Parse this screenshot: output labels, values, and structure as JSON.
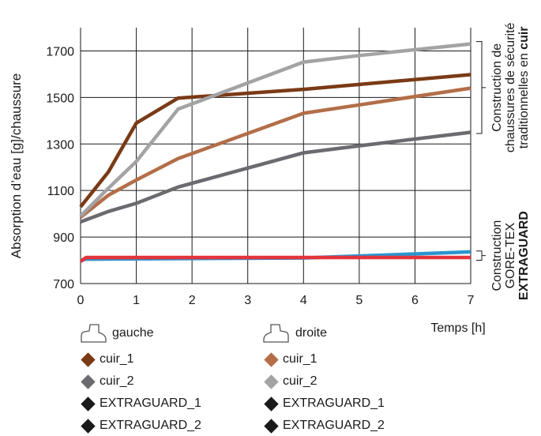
{
  "chart_data": {
    "type": "line",
    "ylabel": "Absorption d’eau [g]/chaussure",
    "xlabel": "Temps [h]",
    "xlim": [
      0,
      7
    ],
    "ylim": [
      700,
      1800
    ],
    "xticks": [
      "0",
      "1",
      "2",
      "3",
      "4",
      "5",
      "6",
      "7"
    ],
    "yticks": [
      "700",
      "900",
      "1100",
      "1300",
      "1500",
      "1700"
    ],
    "grid": true,
    "series": [
      {
        "name": "cuir_1",
        "side": "gauche",
        "color": "#7a3a16",
        "points": [
          [
            0,
            1030
          ],
          [
            0.1,
            1060
          ],
          [
            0.5,
            1180
          ],
          [
            1,
            1390
          ],
          [
            1.75,
            1497
          ],
          [
            4,
            1535
          ],
          [
            7,
            1598
          ]
        ]
      },
      {
        "name": "cuir_2",
        "side": "gauche",
        "color": "#6b6b6f",
        "points": [
          [
            0,
            965
          ],
          [
            0.5,
            1010
          ],
          [
            1,
            1045
          ],
          [
            1.75,
            1115
          ],
          [
            4,
            1262
          ],
          [
            5,
            1292
          ],
          [
            7,
            1350
          ]
        ]
      },
      {
        "name": "cuir_1",
        "side": "droite",
        "color": "#b36e49",
        "points": [
          [
            0,
            985
          ],
          [
            0.5,
            1080
          ],
          [
            1,
            1145
          ],
          [
            1.75,
            1237
          ],
          [
            4,
            1432
          ],
          [
            5,
            1468
          ],
          [
            7,
            1540
          ]
        ]
      },
      {
        "name": "cuir_2",
        "side": "droite",
        "color": "#a3a3a6",
        "points": [
          [
            0,
            990
          ],
          [
            0.5,
            1110
          ],
          [
            1,
            1225
          ],
          [
            1.75,
            1450
          ],
          [
            4,
            1652
          ],
          [
            5,
            1680
          ],
          [
            7,
            1730
          ]
        ]
      },
      {
        "name": "EXTRAGUARD_1",
        "side": "droite",
        "color": "#2b95cf",
        "points": [
          [
            0,
            800
          ],
          [
            0.1,
            805
          ],
          [
            4,
            810
          ],
          [
            7,
            836
          ]
        ]
      },
      {
        "name": "EXTRAGUARD_2",
        "side": "gauche",
        "color": "#e3343c",
        "points": [
          [
            0,
            795
          ],
          [
            0.1,
            812
          ],
          [
            4,
            812
          ],
          [
            7,
            812
          ]
        ]
      }
    ],
    "annotations": [
      {
        "id": "cuir",
        "range": [
          1345,
          1740
        ],
        "lines": [
          "Construction de",
          "chaussures de sécurité",
          "traditionnelles en "
        ],
        "bold": "cuir"
      },
      {
        "id": "extraguard",
        "range": [
          800,
          840
        ],
        "lines": [
          "Construction",
          "GORE-TEX"
        ],
        "bold": "EXTRAGUARD"
      }
    ],
    "legend": {
      "position": "bottom",
      "groups": [
        {
          "title": "gauche",
          "icon": "boot-left-icon",
          "items": [
            {
              "label": "cuir_1",
              "color": "#7a3a16"
            },
            {
              "label": "cuir_2",
              "color": "#6b6b6f"
            },
            {
              "label": "EXTRAGUARD_1",
              "color": "#1a1a1a"
            },
            {
              "label": "EXTRAGUARD_2",
              "color": "#1a1a1a"
            }
          ]
        },
        {
          "title": "droite",
          "icon": "boot-right-icon",
          "items": [
            {
              "label": "cuir_1",
              "color": "#b36e49"
            },
            {
              "label": "cuir_2",
              "color": "#a3a3a6"
            },
            {
              "label": "EXTRAGUARD_1",
              "color": "#1a1a1a"
            },
            {
              "label": "EXTRAGUARD_2",
              "color": "#1a1a1a"
            }
          ]
        }
      ]
    }
  }
}
